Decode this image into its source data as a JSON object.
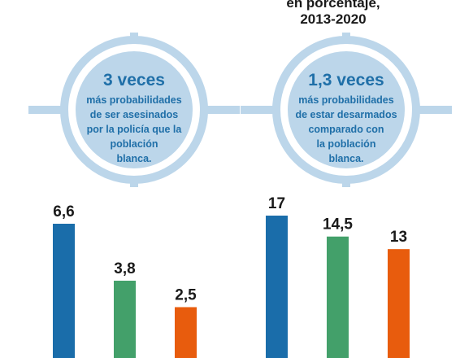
{
  "header": {
    "line1": "en porcentaje,",
    "line2": "2013-2020"
  },
  "left_stat": {
    "big": "3 veces",
    "desc_lines": [
      "más probabilidades",
      "de ser asesinados",
      "por la policía que la",
      "población",
      "blanca."
    ]
  },
  "right_stat": {
    "big": "1,3 veces",
    "desc_lines": [
      "más probabilidades",
      "de estar desarmados",
      "comparado con",
      "la población",
      "blanca."
    ]
  },
  "colors": {
    "blue": "#1a6daa",
    "green": "#43a06a",
    "orange": "#e85c0d",
    "target": "#bcd6ea",
    "text_blue": "#1f6fa8"
  },
  "chart_data": [
    {
      "type": "bar",
      "values": [
        6.6,
        3.8,
        2.5
      ],
      "value_labels": [
        "6,6",
        "3,8",
        "2,5"
      ],
      "colors": [
        "blue",
        "green",
        "orange"
      ],
      "ylim": [
        0,
        6.6
      ]
    },
    {
      "type": "bar",
      "values": [
        17,
        14.5,
        13
      ],
      "value_labels": [
        "17",
        "14,5",
        "13"
      ],
      "colors": [
        "blue",
        "green",
        "orange"
      ],
      "ylim": [
        0,
        17
      ]
    }
  ]
}
